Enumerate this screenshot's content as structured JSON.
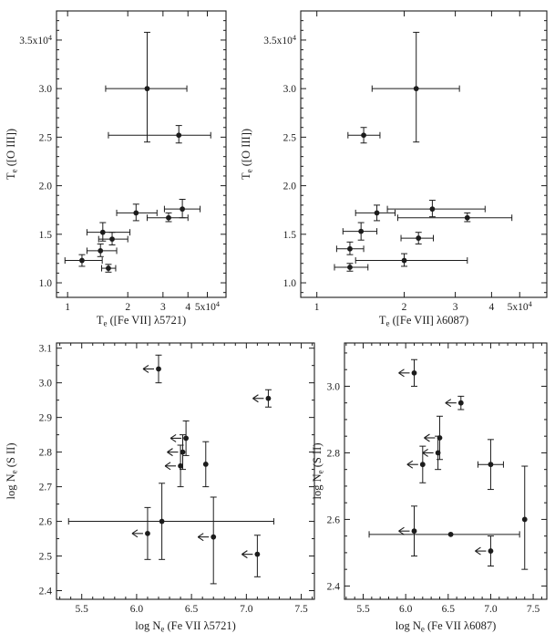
{
  "figure": {
    "background": "#ffffff",
    "ink": "#1c1c1c",
    "description": "2x2 grid of scatter plots with error bars: electron temperature and density diagnostics"
  },
  "chart_data": [
    {
      "id": "te-5721",
      "position": "top-left",
      "type": "scatter",
      "title": "",
      "xlabel": "T_{e} ([Fe VII] λ5721)",
      "ylabel": "T_{e} ([O III])",
      "x_axis": {
        "scale": "log",
        "min": 0.88,
        "max": 6.2,
        "ticks": [
          1,
          2,
          3,
          4,
          5
        ],
        "tick_labels": [
          "1",
          "2",
          "3",
          "4",
          "5x10^{4}"
        ]
      },
      "y_axis": {
        "scale": "linear",
        "min": 0.85,
        "max": 3.8,
        "ticks": [
          1.0,
          1.5,
          2.0,
          2.5,
          3.0,
          3.5
        ],
        "tick_labels": [
          "1.0",
          "1.5",
          "2.0",
          "2.5",
          "3.0",
          "3.5x10^{4}"
        ],
        "minor_step": 0.1
      },
      "points": [
        {
          "x": 2.5,
          "y": 3.0,
          "xerr": [
            1.55,
            3.95
          ],
          "yerr": [
            2.45,
            3.58
          ]
        },
        {
          "x": 3.6,
          "y": 2.52,
          "xerr": [
            1.6,
            5.2
          ],
          "yerr": [
            2.44,
            2.62
          ]
        },
        {
          "x": 3.75,
          "y": 1.76,
          "xerr": [
            3.05,
            4.6
          ],
          "yerr": [
            1.67,
            1.86
          ]
        },
        {
          "x": 2.2,
          "y": 1.72,
          "xerr": [
            1.76,
            2.8
          ],
          "yerr": [
            1.64,
            1.81
          ]
        },
        {
          "x": 3.2,
          "y": 1.67,
          "xerr": [
            2.5,
            4.0
          ],
          "yerr": [
            1.63,
            1.72
          ]
        },
        {
          "x": 1.5,
          "y": 1.52,
          "xerr": [
            1.25,
            2.05
          ],
          "yerr": [
            1.43,
            1.62
          ]
        },
        {
          "x": 1.67,
          "y": 1.45,
          "xerr": [
            1.43,
            2.0
          ],
          "yerr": [
            1.39,
            1.52
          ]
        },
        {
          "x": 1.46,
          "y": 1.33,
          "xerr": [
            1.25,
            1.76
          ],
          "yerr": [
            1.27,
            1.4
          ]
        },
        {
          "x": 1.18,
          "y": 1.23,
          "xerr": [
            0.97,
            1.49
          ],
          "yerr": [
            1.17,
            1.29
          ]
        },
        {
          "x": 1.6,
          "y": 1.15,
          "xerr": [
            1.48,
            1.74
          ],
          "yerr": [
            1.11,
            1.19
          ]
        }
      ]
    },
    {
      "id": "te-6087",
      "position": "top-right",
      "type": "scatter",
      "title": "",
      "xlabel": "T_{e} ([Fe VII] λ6087)",
      "ylabel": "T_{e} ([O III])",
      "x_axis": {
        "scale": "log",
        "min": 0.88,
        "max": 6.2,
        "ticks": [
          1,
          2,
          3,
          4,
          5
        ],
        "tick_labels": [
          "1",
          "2",
          "3",
          "4",
          "5x10^{4}"
        ]
      },
      "y_axis": {
        "scale": "linear",
        "min": 0.85,
        "max": 3.8,
        "ticks": [
          1.0,
          1.5,
          2.0,
          2.5,
          3.0,
          3.5
        ],
        "tick_labels": [
          "1.0",
          "1.5",
          "2.0",
          "2.5",
          "3.0",
          "3.5x10^{4}"
        ],
        "minor_step": 0.1
      },
      "points": [
        {
          "x": 2.2,
          "y": 3.0,
          "xerr": [
            1.55,
            3.1
          ],
          "yerr": [
            2.45,
            3.58
          ]
        },
        {
          "x": 1.45,
          "y": 2.52,
          "xerr": [
            1.28,
            1.65
          ],
          "yerr": [
            2.44,
            2.6
          ]
        },
        {
          "x": 2.5,
          "y": 1.76,
          "xerr": [
            1.75,
            3.8
          ],
          "yerr": [
            1.68,
            1.85
          ]
        },
        {
          "x": 1.61,
          "y": 1.72,
          "xerr": [
            1.36,
            1.86
          ],
          "yerr": [
            1.64,
            1.8
          ]
        },
        {
          "x": 3.3,
          "y": 1.67,
          "xerr": [
            1.9,
            4.7
          ],
          "yerr": [
            1.63,
            1.72
          ]
        },
        {
          "x": 1.42,
          "y": 1.53,
          "xerr": [
            1.23,
            1.61
          ],
          "yerr": [
            1.44,
            1.62
          ]
        },
        {
          "x": 2.24,
          "y": 1.46,
          "xerr": [
            1.95,
            2.52
          ],
          "yerr": [
            1.4,
            1.52
          ]
        },
        {
          "x": 1.3,
          "y": 1.35,
          "xerr": [
            1.17,
            1.45
          ],
          "yerr": [
            1.29,
            1.42
          ]
        },
        {
          "x": 2.0,
          "y": 1.23,
          "xerr": [
            1.36,
            3.3
          ],
          "yerr": [
            1.17,
            1.3
          ]
        },
        {
          "x": 1.3,
          "y": 1.16,
          "xerr": [
            1.15,
            1.5
          ],
          "yerr": [
            1.12,
            1.2
          ]
        }
      ]
    },
    {
      "id": "ne-5721",
      "position": "bottom-left",
      "type": "scatter",
      "title": "",
      "xlabel": "log N_{e} (Fe VII λ5721)",
      "ylabel": "log N_{e} (S II)",
      "x_axis": {
        "scale": "linear",
        "min": 5.27,
        "max": 7.62,
        "ticks": [
          5.5,
          6.0,
          6.5,
          7.0,
          7.5
        ],
        "tick_labels": [
          "5.5",
          "6.0",
          "6.5",
          "7.0",
          "7.5"
        ],
        "minor_step": 0.1
      },
      "y_axis": {
        "scale": "linear",
        "min": 2.375,
        "max": 3.115,
        "ticks": [
          2.4,
          2.5,
          2.6,
          2.7,
          2.8,
          2.9,
          3.0,
          3.1
        ],
        "tick_labels": [
          "2.4",
          "2.5",
          "2.6",
          "2.7",
          "2.8",
          "2.9",
          "3.0",
          "3.1"
        ],
        "minor_step": 0.05
      },
      "points": [
        {
          "x": 6.2,
          "y": 3.04,
          "yerr": [
            3.0,
            3.08
          ],
          "upper_limit_x": true
        },
        {
          "x": 7.2,
          "y": 2.955,
          "yerr": [
            2.93,
            2.98
          ],
          "upper_limit_x": true
        },
        {
          "x": 6.45,
          "y": 2.84,
          "yerr": [
            2.79,
            2.89
          ],
          "upper_limit_x": true
        },
        {
          "x": 6.42,
          "y": 2.8,
          "yerr": [
            2.75,
            2.85
          ],
          "upper_limit_x": true
        },
        {
          "x": 6.4,
          "y": 2.76,
          "yerr": [
            2.7,
            2.82
          ],
          "upper_limit_x": true
        },
        {
          "x": 6.63,
          "y": 2.765,
          "yerr": [
            2.7,
            2.83
          ]
        },
        {
          "x": 6.23,
          "y": 2.6,
          "xerr": [
            5.38,
            7.25
          ],
          "yerr": [
            2.49,
            2.71
          ]
        },
        {
          "x": 6.1,
          "y": 2.565,
          "yerr": [
            2.49,
            2.64
          ],
          "upper_limit_x": true
        },
        {
          "x": 6.7,
          "y": 2.555,
          "yerr": [
            2.42,
            2.67
          ],
          "upper_limit_x": true
        },
        {
          "x": 7.1,
          "y": 2.505,
          "yerr": [
            2.44,
            2.56
          ],
          "upper_limit_x": true
        }
      ]
    },
    {
      "id": "ne-6087",
      "position": "bottom-right",
      "type": "scatter",
      "title": "",
      "xlabel": "log N_{e} (Fe VII λ6087)",
      "ylabel": "log N_{e} (S II)",
      "x_axis": {
        "scale": "linear",
        "min": 5.28,
        "max": 7.66,
        "ticks": [
          5.5,
          6.0,
          6.5,
          7.0,
          7.5
        ],
        "tick_labels": [
          "5.5",
          "6.0",
          "6.5",
          "7.0",
          "7.5"
        ],
        "minor_step": 0.1
      },
      "y_axis": {
        "scale": "linear",
        "min": 2.36,
        "max": 3.13,
        "ticks": [
          2.4,
          2.6,
          2.8,
          3.0
        ],
        "tick_labels": [
          "2.4",
          "2.6",
          "2.8",
          "3.0"
        ],
        "minor_step": 0.05
      },
      "points": [
        {
          "x": 6.1,
          "y": 3.04,
          "yerr": [
            3.0,
            3.08
          ],
          "upper_limit_x": true
        },
        {
          "x": 6.65,
          "y": 2.95,
          "yerr": [
            2.93,
            2.97
          ],
          "upper_limit_x": true
        },
        {
          "x": 6.4,
          "y": 2.845,
          "yerr": [
            2.78,
            2.91
          ],
          "upper_limit_x": true
        },
        {
          "x": 6.38,
          "y": 2.8,
          "yerr": [
            2.75,
            2.85
          ],
          "upper_limit_x": true
        },
        {
          "x": 6.2,
          "y": 2.765,
          "yerr": [
            2.71,
            2.82
          ],
          "upper_limit_x": true
        },
        {
          "x": 7.0,
          "y": 2.765,
          "xerr": [
            6.85,
            7.15
          ],
          "yerr": [
            2.69,
            2.84
          ]
        },
        {
          "x": 7.4,
          "y": 2.6,
          "yerr": [
            2.45,
            2.76
          ]
        },
        {
          "x": 6.53,
          "y": 2.555,
          "xerr": [
            5.57,
            7.34
          ]
        },
        {
          "x": 6.1,
          "y": 2.565,
          "yerr": [
            2.49,
            2.64
          ],
          "upper_limit_x": true
        },
        {
          "x": 7.0,
          "y": 2.505,
          "yerr": [
            2.46,
            2.55
          ],
          "upper_limit_x": true
        }
      ]
    }
  ]
}
